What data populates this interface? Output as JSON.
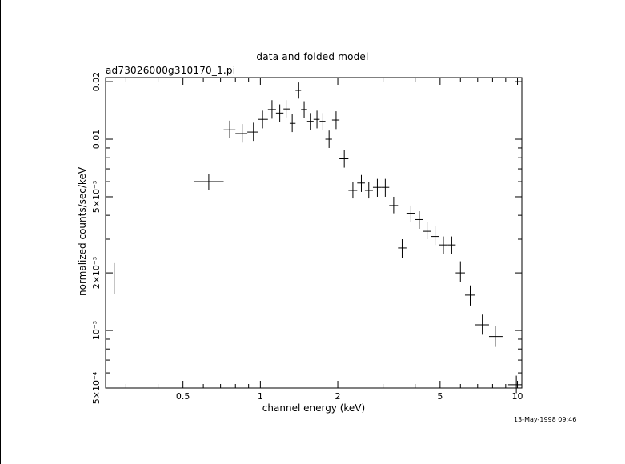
{
  "chart_data": {
    "type": "scatter",
    "title": "data and folded model",
    "subtitle": "ad73026000g310170_1.pi",
    "xlabel": "channel energy (keV)",
    "ylabel": "normalized counts/sec/keV",
    "xscale": "log",
    "yscale": "log",
    "xlim": [
      0.25,
      10.4
    ],
    "ylim": [
      0.0005,
      0.021
    ],
    "grid": false,
    "xticks": [
      {
        "v": 0.5,
        "label": "0.5"
      },
      {
        "v": 1,
        "label": "1"
      },
      {
        "v": 2,
        "label": "2"
      },
      {
        "v": 5,
        "label": "5"
      },
      {
        "v": 10,
        "label": "10"
      }
    ],
    "yticks": [
      {
        "v": 0.0005,
        "label": "5×10⁻⁴"
      },
      {
        "v": 0.001,
        "label": "10⁻³"
      },
      {
        "v": 0.002,
        "label": "2×10⁻³"
      },
      {
        "v": 0.005,
        "label": "5×10⁻³"
      },
      {
        "v": 0.01,
        "label": "0.01"
      },
      {
        "v": 0.02,
        "label": "0.02"
      }
    ],
    "points": [
      {
        "x": 0.27,
        "xlo": 0.26,
        "xhi": 0.54,
        "y": 0.00188,
        "ylo": 0.00155,
        "yhi": 0.00225
      },
      {
        "x": 0.63,
        "xlo": 0.55,
        "xhi": 0.72,
        "y": 0.006,
        "ylo": 0.0054,
        "yhi": 0.0066
      },
      {
        "x": 0.76,
        "xlo": 0.72,
        "xhi": 0.8,
        "y": 0.0112,
        "ylo": 0.0101,
        "yhi": 0.0125
      },
      {
        "x": 0.85,
        "xlo": 0.8,
        "xhi": 0.89,
        "y": 0.0107,
        "ylo": 0.0096,
        "yhi": 0.012
      },
      {
        "x": 0.94,
        "xlo": 0.89,
        "xhi": 0.98,
        "y": 0.0109,
        "ylo": 0.0098,
        "yhi": 0.0122
      },
      {
        "x": 1.02,
        "xlo": 0.98,
        "xhi": 1.07,
        "y": 0.0127,
        "ylo": 0.0114,
        "yhi": 0.0141
      },
      {
        "x": 1.11,
        "xlo": 1.07,
        "xhi": 1.15,
        "y": 0.0143,
        "ylo": 0.0128,
        "yhi": 0.016
      },
      {
        "x": 1.19,
        "xlo": 1.15,
        "xhi": 1.23,
        "y": 0.0137,
        "ylo": 0.0123,
        "yhi": 0.0152
      },
      {
        "x": 1.26,
        "xlo": 1.23,
        "xhi": 1.3,
        "y": 0.0144,
        "ylo": 0.013,
        "yhi": 0.016
      },
      {
        "x": 1.33,
        "xlo": 1.3,
        "xhi": 1.37,
        "y": 0.0121,
        "ylo": 0.0109,
        "yhi": 0.0135
      },
      {
        "x": 1.41,
        "xlo": 1.37,
        "xhi": 1.44,
        "y": 0.018,
        "ylo": 0.0163,
        "yhi": 0.0198
      },
      {
        "x": 1.48,
        "xlo": 1.44,
        "xhi": 1.52,
        "y": 0.0143,
        "ylo": 0.0129,
        "yhi": 0.0158
      },
      {
        "x": 1.57,
        "xlo": 1.52,
        "xhi": 1.61,
        "y": 0.0124,
        "ylo": 0.0112,
        "yhi": 0.0137
      },
      {
        "x": 1.66,
        "xlo": 1.61,
        "xhi": 1.7,
        "y": 0.0127,
        "ylo": 0.0114,
        "yhi": 0.0141
      },
      {
        "x": 1.75,
        "xlo": 1.7,
        "xhi": 1.79,
        "y": 0.0124,
        "ylo": 0.0112,
        "yhi": 0.0137
      },
      {
        "x": 1.85,
        "xlo": 1.79,
        "xhi": 1.9,
        "y": 0.01,
        "ylo": 0.009,
        "yhi": 0.0111
      },
      {
        "x": 1.97,
        "xlo": 1.9,
        "xhi": 2.03,
        "y": 0.0126,
        "ylo": 0.0113,
        "yhi": 0.014
      },
      {
        "x": 2.12,
        "xlo": 2.03,
        "xhi": 2.2,
        "y": 0.0079,
        "ylo": 0.0071,
        "yhi": 0.0088
      },
      {
        "x": 2.29,
        "xlo": 2.2,
        "xhi": 2.38,
        "y": 0.0054,
        "ylo": 0.0049,
        "yhi": 0.006
      },
      {
        "x": 2.47,
        "xlo": 2.38,
        "xhi": 2.55,
        "y": 0.0059,
        "ylo": 0.0053,
        "yhi": 0.0065
      },
      {
        "x": 2.64,
        "xlo": 2.55,
        "xhi": 2.74,
        "y": 0.0054,
        "ylo": 0.0049,
        "yhi": 0.006
      },
      {
        "x": 2.85,
        "xlo": 2.74,
        "xhi": 2.96,
        "y": 0.0056,
        "ylo": 0.005,
        "yhi": 0.0062
      },
      {
        "x": 3.06,
        "xlo": 2.96,
        "xhi": 3.17,
        "y": 0.0056,
        "ylo": 0.005,
        "yhi": 0.0062
      },
      {
        "x": 3.3,
        "xlo": 3.17,
        "xhi": 3.43,
        "y": 0.0045,
        "ylo": 0.0041,
        "yhi": 0.005
      },
      {
        "x": 3.56,
        "xlo": 3.43,
        "xhi": 3.7,
        "y": 0.0027,
        "ylo": 0.0024,
        "yhi": 0.003
      },
      {
        "x": 3.85,
        "xlo": 3.7,
        "xhi": 4.0,
        "y": 0.0041,
        "ylo": 0.0037,
        "yhi": 0.0045
      },
      {
        "x": 4.15,
        "xlo": 4.0,
        "xhi": 4.3,
        "y": 0.0038,
        "ylo": 0.0034,
        "yhi": 0.0042
      },
      {
        "x": 4.45,
        "xlo": 4.3,
        "xhi": 4.6,
        "y": 0.0033,
        "ylo": 0.003,
        "yhi": 0.0037
      },
      {
        "x": 4.78,
        "xlo": 4.6,
        "xhi": 4.96,
        "y": 0.0031,
        "ylo": 0.0028,
        "yhi": 0.0035
      },
      {
        "x": 5.15,
        "xlo": 4.96,
        "xhi": 5.35,
        "y": 0.0028,
        "ylo": 0.0025,
        "yhi": 0.0031
      },
      {
        "x": 5.55,
        "xlo": 5.35,
        "xhi": 5.75,
        "y": 0.0028,
        "ylo": 0.0025,
        "yhi": 0.0031
      },
      {
        "x": 6.0,
        "xlo": 5.75,
        "xhi": 6.25,
        "y": 0.002,
        "ylo": 0.0018,
        "yhi": 0.0023
      },
      {
        "x": 6.55,
        "xlo": 6.25,
        "xhi": 6.85,
        "y": 0.00153,
        "ylo": 0.00135,
        "yhi": 0.00172
      },
      {
        "x": 7.3,
        "xlo": 6.85,
        "xhi": 7.75,
        "y": 0.00107,
        "ylo": 0.00095,
        "yhi": 0.00121
      },
      {
        "x": 8.2,
        "xlo": 7.75,
        "xhi": 8.75,
        "y": 0.00093,
        "ylo": 0.00082,
        "yhi": 0.00106
      },
      {
        "x": 9.9,
        "xlo": 9.2,
        "xhi": 10.4,
        "y": 0.00052,
        "ylo": 0.00047,
        "yhi": 0.00058
      }
    ]
  },
  "footer": {
    "timestamp": "13-May-1998 09:46"
  }
}
